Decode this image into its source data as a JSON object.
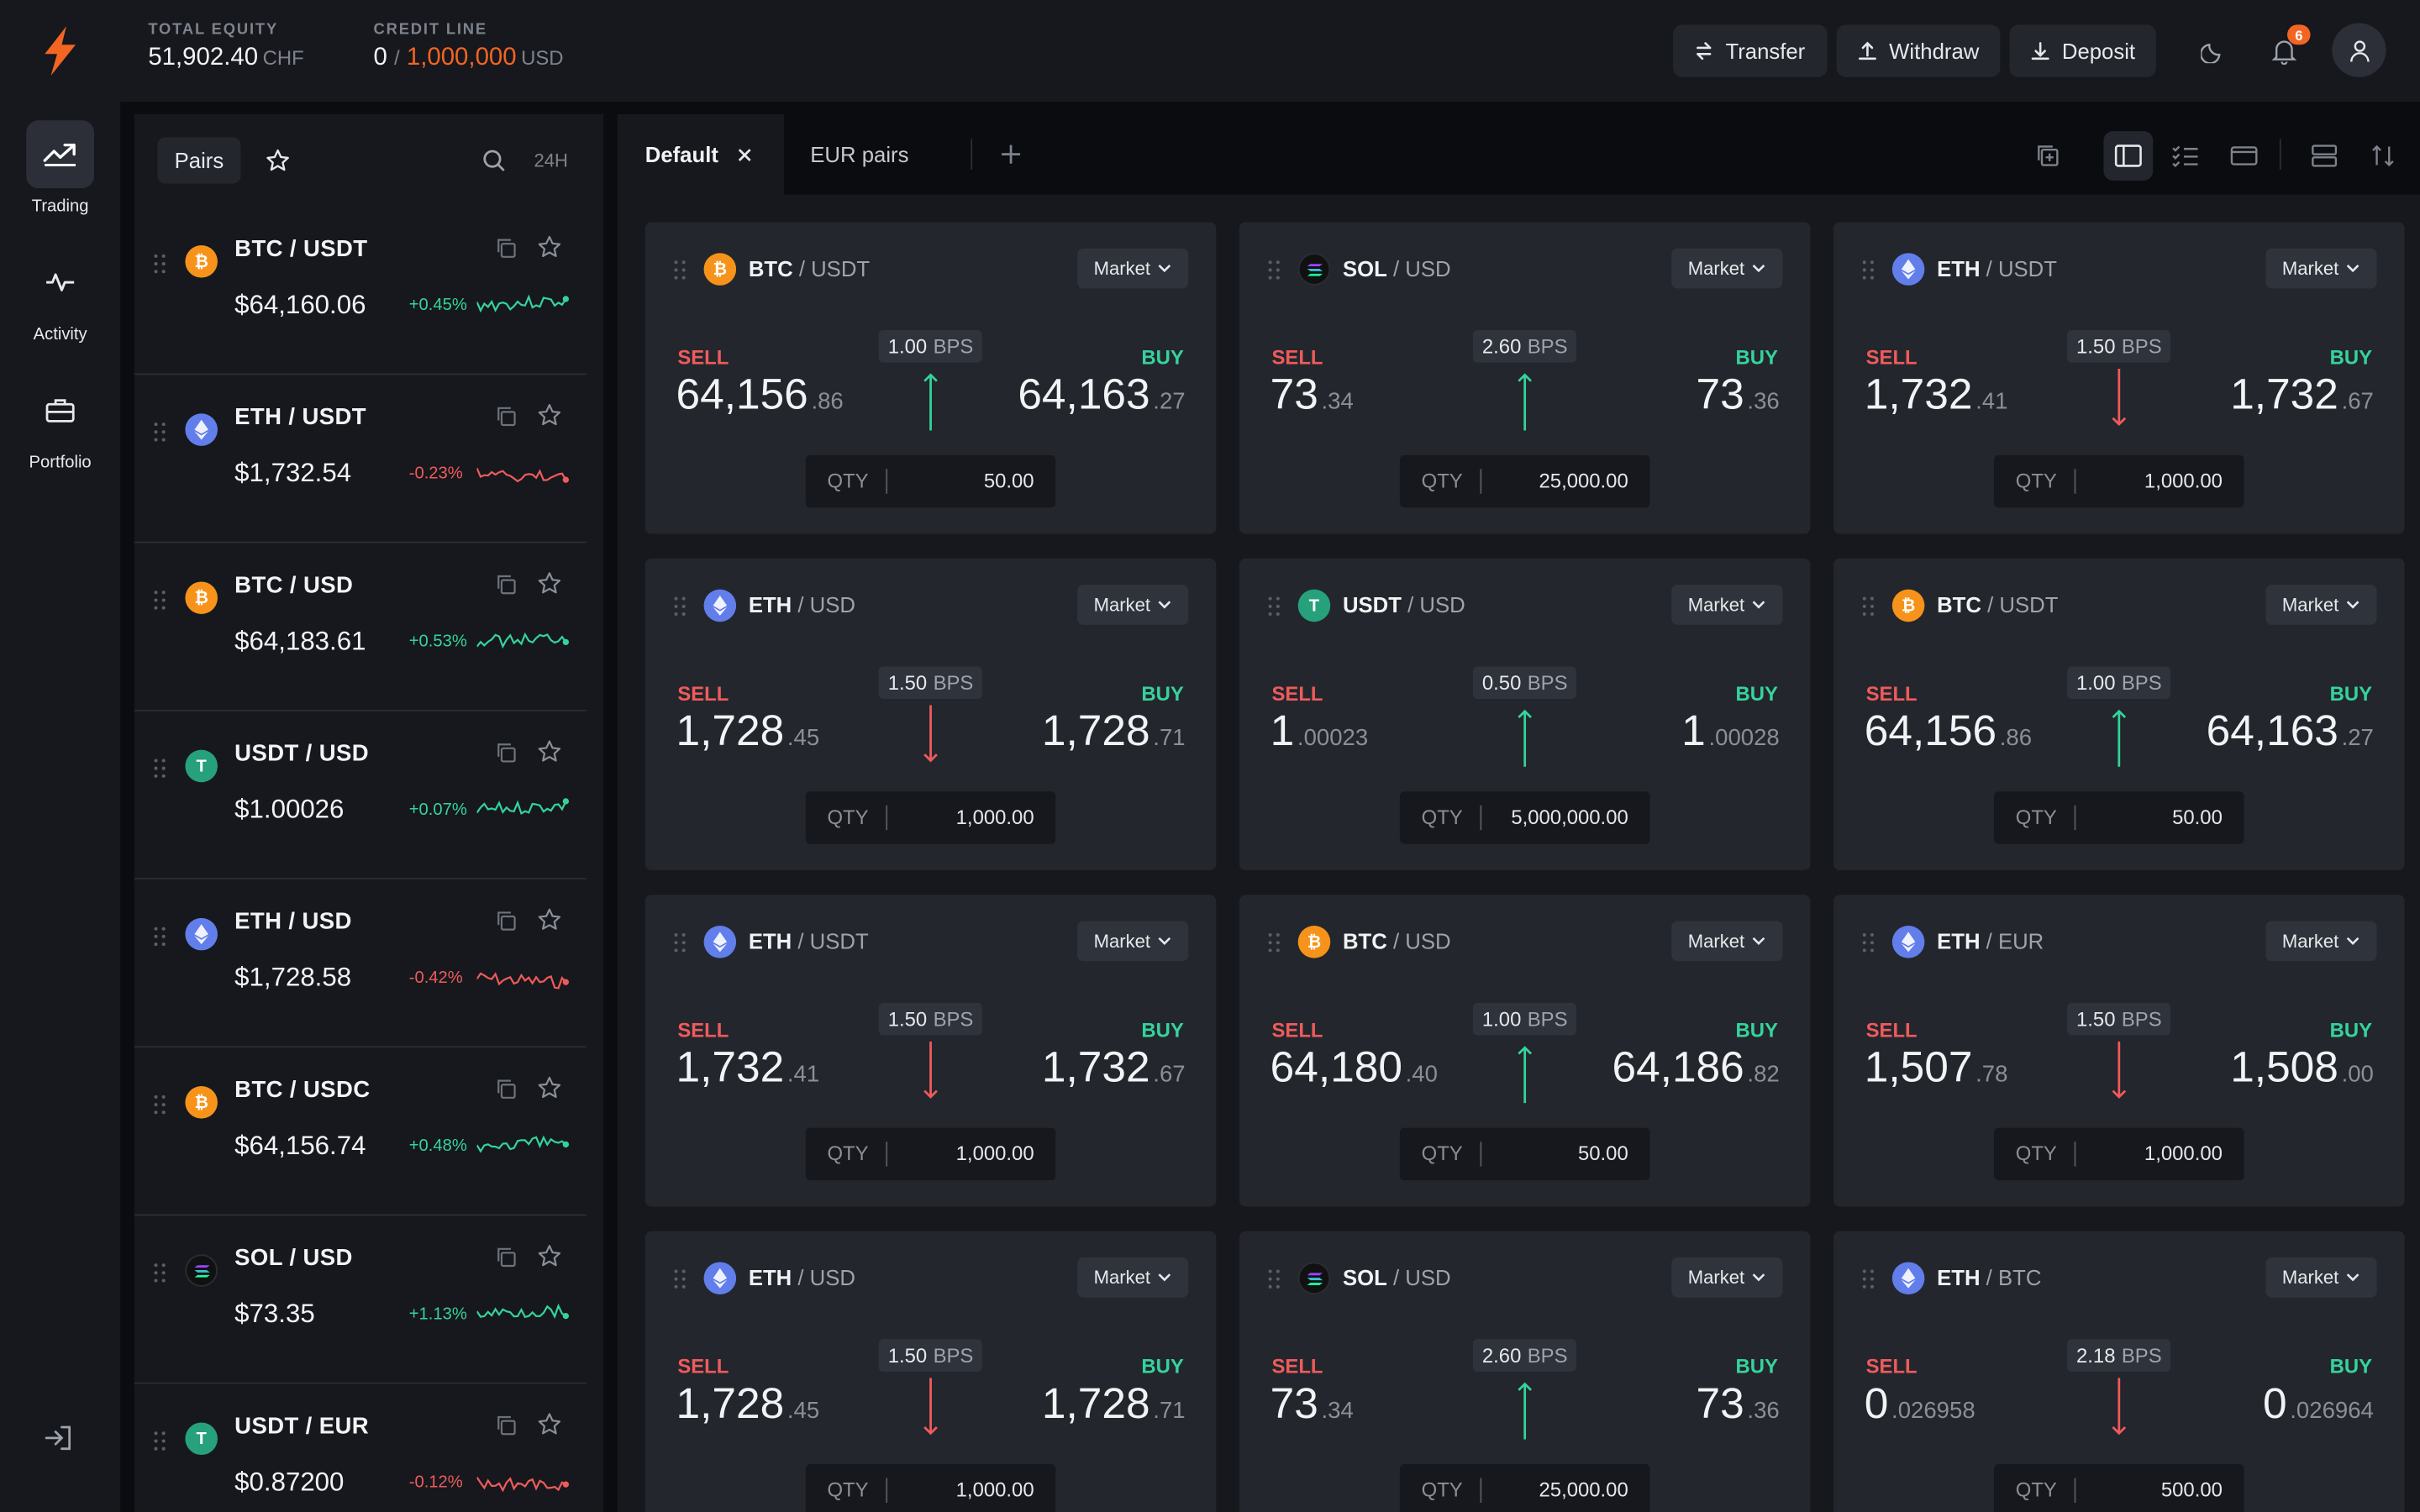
{
  "header": {
    "equity_label": "TOTAL EQUITY",
    "equity_value": "51,902.40",
    "equity_unit": "CHF",
    "credit_label": "CREDIT LINE",
    "credit_used": "0",
    "credit_sep": "/",
    "credit_total": "1,000,000",
    "credit_unit": "USD",
    "transfer": "Transfer",
    "withdraw": "Withdraw",
    "deposit": "Deposit",
    "notifications": "6"
  },
  "nav": {
    "trading": "Trading",
    "activity": "Activity",
    "portfolio": "Portfolio"
  },
  "pairs_panel": {
    "tab": "Pairs",
    "period": "24H",
    "items": [
      {
        "name": "BTC / USDT",
        "price": "$64,160.06",
        "change": "+0.45%",
        "trend": "up",
        "coin": "btc"
      },
      {
        "name": "ETH / USDT",
        "price": "$1,732.54",
        "change": "-0.23%",
        "trend": "down",
        "coin": "eth"
      },
      {
        "name": "BTC / USD",
        "price": "$64,183.61",
        "change": "+0.53%",
        "trend": "up",
        "coin": "btc"
      },
      {
        "name": "USDT / USD",
        "price": "$1.00026",
        "change": "+0.07%",
        "trend": "up",
        "coin": "usdt"
      },
      {
        "name": "ETH / USD",
        "price": "$1,728.58",
        "change": "-0.42%",
        "trend": "down",
        "coin": "eth"
      },
      {
        "name": "BTC / USDC",
        "price": "$64,156.74",
        "change": "+0.48%",
        "trend": "up",
        "coin": "btc"
      },
      {
        "name": "SOL / USD",
        "price": "$73.35",
        "change": "+1.13%",
        "trend": "up",
        "coin": "sol"
      },
      {
        "name": "USDT / EUR",
        "price": "$0.87200",
        "change": "-0.12%",
        "trend": "down",
        "coin": "usdt"
      }
    ]
  },
  "tabs": {
    "default": "Default",
    "eur_pairs": "EUR pairs"
  },
  "labels": {
    "sell": "SELL",
    "buy": "BUY",
    "qty": "QTY",
    "market": "Market",
    "bps_unit": "BPS"
  },
  "colors": {
    "sell": "#ef5b5b",
    "buy": "#35d39b",
    "brand": "#f26522",
    "btc": "#f7931a",
    "eth": "#627eea",
    "usdt": "#26a17b",
    "sol": "#111111"
  },
  "cards": [
    {
      "base": "BTC",
      "quote": "USDT",
      "coin": "btc",
      "sell_main": "64,156",
      "sell_dec": ".86",
      "buy_main": "64,163",
      "buy_dec": ".27",
      "bps": "1.00",
      "dir": "up",
      "qty": "50.00"
    },
    {
      "base": "SOL",
      "quote": "USD",
      "coin": "sol",
      "sell_main": "73",
      "sell_dec": ".34",
      "buy_main": "73",
      "buy_dec": ".36",
      "bps": "2.60",
      "dir": "up",
      "qty": "25,000.00"
    },
    {
      "base": "ETH",
      "quote": "USDT",
      "coin": "eth",
      "sell_main": "1,732",
      "sell_dec": ".41",
      "buy_main": "1,732",
      "buy_dec": ".67",
      "bps": "1.50",
      "dir": "down",
      "qty": "1,000.00"
    },
    {
      "base": "ETH",
      "quote": "USD",
      "coin": "eth",
      "sell_main": "1,728",
      "sell_dec": ".45",
      "buy_main": "1,728",
      "buy_dec": ".71",
      "bps": "1.50",
      "dir": "down",
      "qty": "1,000.00"
    },
    {
      "base": "USDT",
      "quote": "USD",
      "coin": "usdt",
      "sell_main": "1",
      "sell_dec": ".00023",
      "buy_main": "1",
      "buy_dec": ".00028",
      "bps": "0.50",
      "dir": "up",
      "qty": "5,000,000.00"
    },
    {
      "base": "BTC",
      "quote": "USDT",
      "coin": "btc",
      "sell_main": "64,156",
      "sell_dec": ".86",
      "buy_main": "64,163",
      "buy_dec": ".27",
      "bps": "1.00",
      "dir": "up",
      "qty": "50.00"
    },
    {
      "base": "ETH",
      "quote": "USDT",
      "coin": "eth",
      "sell_main": "1,732",
      "sell_dec": ".41",
      "buy_main": "1,732",
      "buy_dec": ".67",
      "bps": "1.50",
      "dir": "down",
      "qty": "1,000.00"
    },
    {
      "base": "BTC",
      "quote": "USD",
      "coin": "btc",
      "sell_main": "64,180",
      "sell_dec": ".40",
      "buy_main": "64,186",
      "buy_dec": ".82",
      "bps": "1.00",
      "dir": "up",
      "qty": "50.00"
    },
    {
      "base": "ETH",
      "quote": "EUR",
      "coin": "eth",
      "sell_main": "1,507",
      "sell_dec": ".78",
      "buy_main": "1,508",
      "buy_dec": ".00",
      "bps": "1.50",
      "dir": "down",
      "qty": "1,000.00"
    },
    {
      "base": "ETH",
      "quote": "USD",
      "coin": "eth",
      "sell_main": "1,728",
      "sell_dec": ".45",
      "buy_main": "1,728",
      "buy_dec": ".71",
      "bps": "1.50",
      "dir": "down",
      "qty": "1,000.00"
    },
    {
      "base": "SOL",
      "quote": "USD",
      "coin": "sol",
      "sell_main": "73",
      "sell_dec": ".34",
      "buy_main": "73",
      "buy_dec": ".36",
      "bps": "2.60",
      "dir": "up",
      "qty": "25,000.00"
    },
    {
      "base": "ETH",
      "quote": "BTC",
      "coin": "eth",
      "sell_main": "0",
      "sell_dec": ".026958",
      "buy_main": "0",
      "buy_dec": ".026964",
      "bps": "2.18",
      "dir": "down",
      "qty": "500.00"
    }
  ]
}
